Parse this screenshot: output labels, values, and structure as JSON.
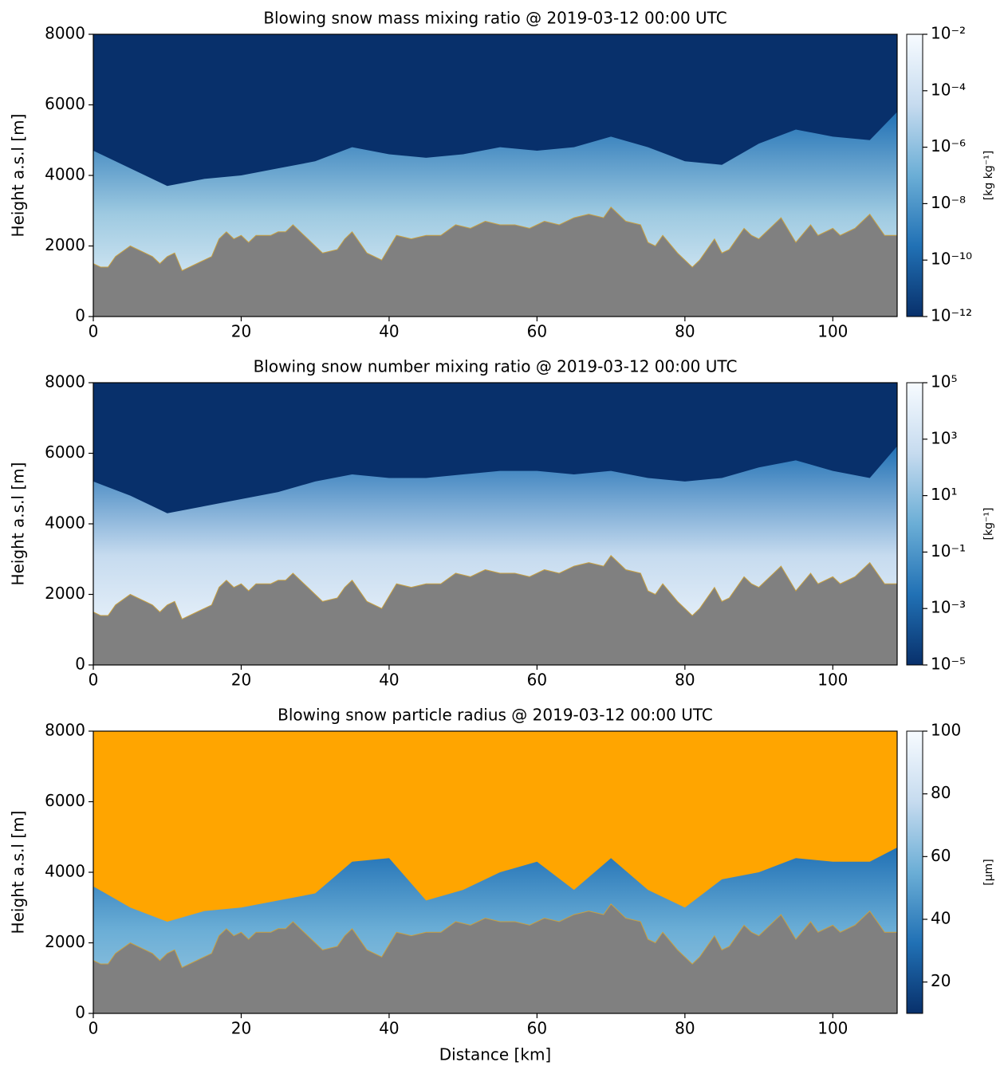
{
  "chart_data": [
    {
      "type": "heatmap",
      "title": "Blowing snow mass mixing ratio  @   2019-03-12  00:00 UTC",
      "ylabel": "Height a.s.l [m]",
      "xlim": [
        0,
        108.7
      ],
      "ylim": [
        0,
        8000
      ],
      "xticks": [
        0,
        20,
        40,
        60,
        80,
        100
      ],
      "yticks": [
        0,
        2000,
        4000,
        6000,
        8000
      ],
      "background": "#08306b",
      "series": [
        {
          "color": [
            "#2171b5",
            "#9ecae1",
            "#eef5fc"
          ],
          "x": [
            0,
            5,
            10,
            15,
            20,
            25,
            30,
            35,
            40,
            45,
            50,
            55,
            60,
            65,
            70,
            75,
            80,
            85,
            90,
            95,
            100,
            105,
            108.7
          ],
          "values": [
            4700,
            4200,
            3700,
            3900,
            4000,
            4200,
            4400,
            4800,
            4600,
            4500,
            4600,
            4800,
            4700,
            4800,
            5100,
            4800,
            4400,
            4300,
            4900,
            5300,
            5100,
            5000,
            5800
          ]
        },
        {
          "color": "#808080",
          "x": [
            0,
            1,
            2,
            3,
            5,
            7,
            8,
            9,
            10,
            11,
            12,
            14,
            16,
            17,
            18,
            19,
            20,
            21,
            22,
            24,
            25,
            26,
            27,
            29,
            31,
            33,
            34,
            35,
            37,
            39,
            41,
            43,
            45,
            47,
            49,
            51,
            53,
            55,
            57,
            59,
            61,
            63,
            65,
            67,
            69,
            70,
            72,
            74,
            75,
            76,
            77,
            79,
            81,
            82,
            84,
            85,
            86,
            88,
            89,
            90,
            92,
            93,
            95,
            97,
            98,
            100,
            101,
            103,
            105,
            107,
            108.7
          ],
          "values": [
            1500,
            1400,
            1400,
            1700,
            2000,
            1800,
            1700,
            1500,
            1700,
            1800,
            1300,
            1500,
            1700,
            2200,
            2400,
            2200,
            2300,
            2100,
            2300,
            2300,
            2400,
            2400,
            2600,
            2200,
            1800,
            1900,
            2200,
            2400,
            1800,
            1600,
            2300,
            2200,
            2300,
            2300,
            2600,
            2500,
            2700,
            2600,
            2600,
            2500,
            2700,
            2600,
            2800,
            2900,
            2800,
            3100,
            2700,
            2600,
            2100,
            2000,
            2300,
            1800,
            1400,
            1600,
            2200,
            1800,
            1900,
            2500,
            2300,
            2200,
            2600,
            2800,
            2100,
            2600,
            2300,
            2500,
            2300,
            2500,
            2900,
            2300,
            2300
          ]
        }
      ],
      "colorbar": {
        "label": "[kg kg⁻¹]",
        "scale": "log",
        "lim": [
          1e-12,
          0.01
        ],
        "colormap": [
          "#08306b",
          "#2171b5",
          "#6baed6",
          "#c6dbef",
          "#f7fbff"
        ],
        "ticks": [
          {
            "value": 1e-12,
            "label": "10⁻¹²"
          },
          {
            "value": 1e-10,
            "label": "10⁻¹⁰"
          },
          {
            "value": 1e-08,
            "label": "10⁻⁸"
          },
          {
            "value": 1e-06,
            "label": "10⁻⁶"
          },
          {
            "value": 0.0001,
            "label": "10⁻⁴"
          },
          {
            "value": 0.01,
            "label": "10⁻²"
          }
        ]
      }
    },
    {
      "type": "heatmap",
      "title": "Blowing snow number mixing ratio @   2019-03-12  00:00 UTC",
      "ylabel": "Height a.s.l [m]",
      "xlim": [
        0,
        108.7
      ],
      "ylim": [
        0,
        8000
      ],
      "xticks": [
        0,
        20,
        40,
        60,
        80,
        100
      ],
      "yticks": [
        0,
        2000,
        4000,
        6000,
        8000
      ],
      "background": "#08306b",
      "series": [
        {
          "color": [
            "#2171b5",
            "#c6dbef",
            "#f7fbff"
          ],
          "x": [
            0,
            5,
            10,
            15,
            20,
            25,
            30,
            35,
            40,
            45,
            50,
            55,
            60,
            65,
            70,
            75,
            80,
            85,
            90,
            95,
            100,
            105,
            108.7
          ],
          "values": [
            5200,
            4800,
            4300,
            4500,
            4700,
            4900,
            5200,
            5400,
            5300,
            5300,
            5400,
            5500,
            5500,
            5400,
            5500,
            5300,
            5200,
            5300,
            5600,
            5800,
            5500,
            5300,
            6200
          ]
        },
        {
          "color": "#808080",
          "x": [
            0,
            1,
            2,
            3,
            5,
            7,
            8,
            9,
            10,
            11,
            12,
            14,
            16,
            17,
            18,
            19,
            20,
            21,
            22,
            24,
            25,
            26,
            27,
            29,
            31,
            33,
            34,
            35,
            37,
            39,
            41,
            43,
            45,
            47,
            49,
            51,
            53,
            55,
            57,
            59,
            61,
            63,
            65,
            67,
            69,
            70,
            72,
            74,
            75,
            76,
            77,
            79,
            81,
            82,
            84,
            85,
            86,
            88,
            89,
            90,
            92,
            93,
            95,
            97,
            98,
            100,
            101,
            103,
            105,
            107,
            108.7
          ],
          "values": [
            1500,
            1400,
            1400,
            1700,
            2000,
            1800,
            1700,
            1500,
            1700,
            1800,
            1300,
            1500,
            1700,
            2200,
            2400,
            2200,
            2300,
            2100,
            2300,
            2300,
            2400,
            2400,
            2600,
            2200,
            1800,
            1900,
            2200,
            2400,
            1800,
            1600,
            2300,
            2200,
            2300,
            2300,
            2600,
            2500,
            2700,
            2600,
            2600,
            2500,
            2700,
            2600,
            2800,
            2900,
            2800,
            3100,
            2700,
            2600,
            2100,
            2000,
            2300,
            1800,
            1400,
            1600,
            2200,
            1800,
            1900,
            2500,
            2300,
            2200,
            2600,
            2800,
            2100,
            2600,
            2300,
            2500,
            2300,
            2500,
            2900,
            2300,
            2300
          ]
        }
      ],
      "colorbar": {
        "label": "[kg⁻¹]",
        "scale": "log",
        "lim": [
          1e-05,
          100000
        ],
        "colormap": [
          "#08306b",
          "#2171b5",
          "#6baed6",
          "#c6dbef",
          "#f7fbff"
        ],
        "ticks": [
          {
            "value": 1e-05,
            "label": "10⁻⁵"
          },
          {
            "value": 0.001,
            "label": "10⁻³"
          },
          {
            "value": 0.1,
            "label": "10⁻¹"
          },
          {
            "value": 10,
            "label": "10¹"
          },
          {
            "value": 1000,
            "label": "10³"
          },
          {
            "value": 100000,
            "label": "10⁵"
          }
        ]
      }
    },
    {
      "type": "heatmap",
      "title": "Blowing snow particle radius @   2019-03-12  00:00 UTC",
      "ylabel": "Height a.s.l [m]",
      "xlabel": "Distance [km]",
      "xlim": [
        0,
        108.7
      ],
      "ylim": [
        0,
        8000
      ],
      "xticks": [
        0,
        20,
        40,
        60,
        80,
        100
      ],
      "yticks": [
        0,
        2000,
        4000,
        6000,
        8000
      ],
      "background": "#ffa500",
      "series": [
        {
          "color": [
            "#2171b5",
            "#6baed6",
            "#9ecae1"
          ],
          "x": [
            0,
            5,
            10,
            15,
            20,
            25,
            30,
            35,
            40,
            45,
            50,
            55,
            60,
            65,
            70,
            75,
            80,
            85,
            90,
            95,
            100,
            105,
            108.7
          ],
          "values": [
            3600,
            3000,
            2600,
            2900,
            3000,
            3200,
            3400,
            4300,
            4400,
            3200,
            3500,
            4000,
            4300,
            3500,
            4400,
            3500,
            3000,
            3800,
            4000,
            4400,
            4300,
            4300,
            4700
          ]
        },
        {
          "color": "#808080",
          "x": [
            0,
            1,
            2,
            3,
            5,
            7,
            8,
            9,
            10,
            11,
            12,
            14,
            16,
            17,
            18,
            19,
            20,
            21,
            22,
            24,
            25,
            26,
            27,
            29,
            31,
            33,
            34,
            35,
            37,
            39,
            41,
            43,
            45,
            47,
            49,
            51,
            53,
            55,
            57,
            59,
            61,
            63,
            65,
            67,
            69,
            70,
            72,
            74,
            75,
            76,
            77,
            79,
            81,
            82,
            84,
            85,
            86,
            88,
            89,
            90,
            92,
            93,
            95,
            97,
            98,
            100,
            101,
            103,
            105,
            107,
            108.7
          ],
          "values": [
            1500,
            1400,
            1400,
            1700,
            2000,
            1800,
            1700,
            1500,
            1700,
            1800,
            1300,
            1500,
            1700,
            2200,
            2400,
            2200,
            2300,
            2100,
            2300,
            2300,
            2400,
            2400,
            2600,
            2200,
            1800,
            1900,
            2200,
            2400,
            1800,
            1600,
            2300,
            2200,
            2300,
            2300,
            2600,
            2500,
            2700,
            2600,
            2600,
            2500,
            2700,
            2600,
            2800,
            2900,
            2800,
            3100,
            2700,
            2600,
            2100,
            2000,
            2300,
            1800,
            1400,
            1600,
            2200,
            1800,
            1900,
            2500,
            2300,
            2200,
            2600,
            2800,
            2100,
            2600,
            2300,
            2500,
            2300,
            2500,
            2900,
            2300,
            2300
          ]
        }
      ],
      "colorbar": {
        "label": "[μm]",
        "scale": "linear",
        "lim": [
          10,
          100
        ],
        "colormap": [
          "#08306b",
          "#2171b5",
          "#6baed6",
          "#c6dbef",
          "#f7fbff"
        ],
        "ticks": [
          20,
          40,
          60,
          80,
          100
        ]
      }
    }
  ]
}
